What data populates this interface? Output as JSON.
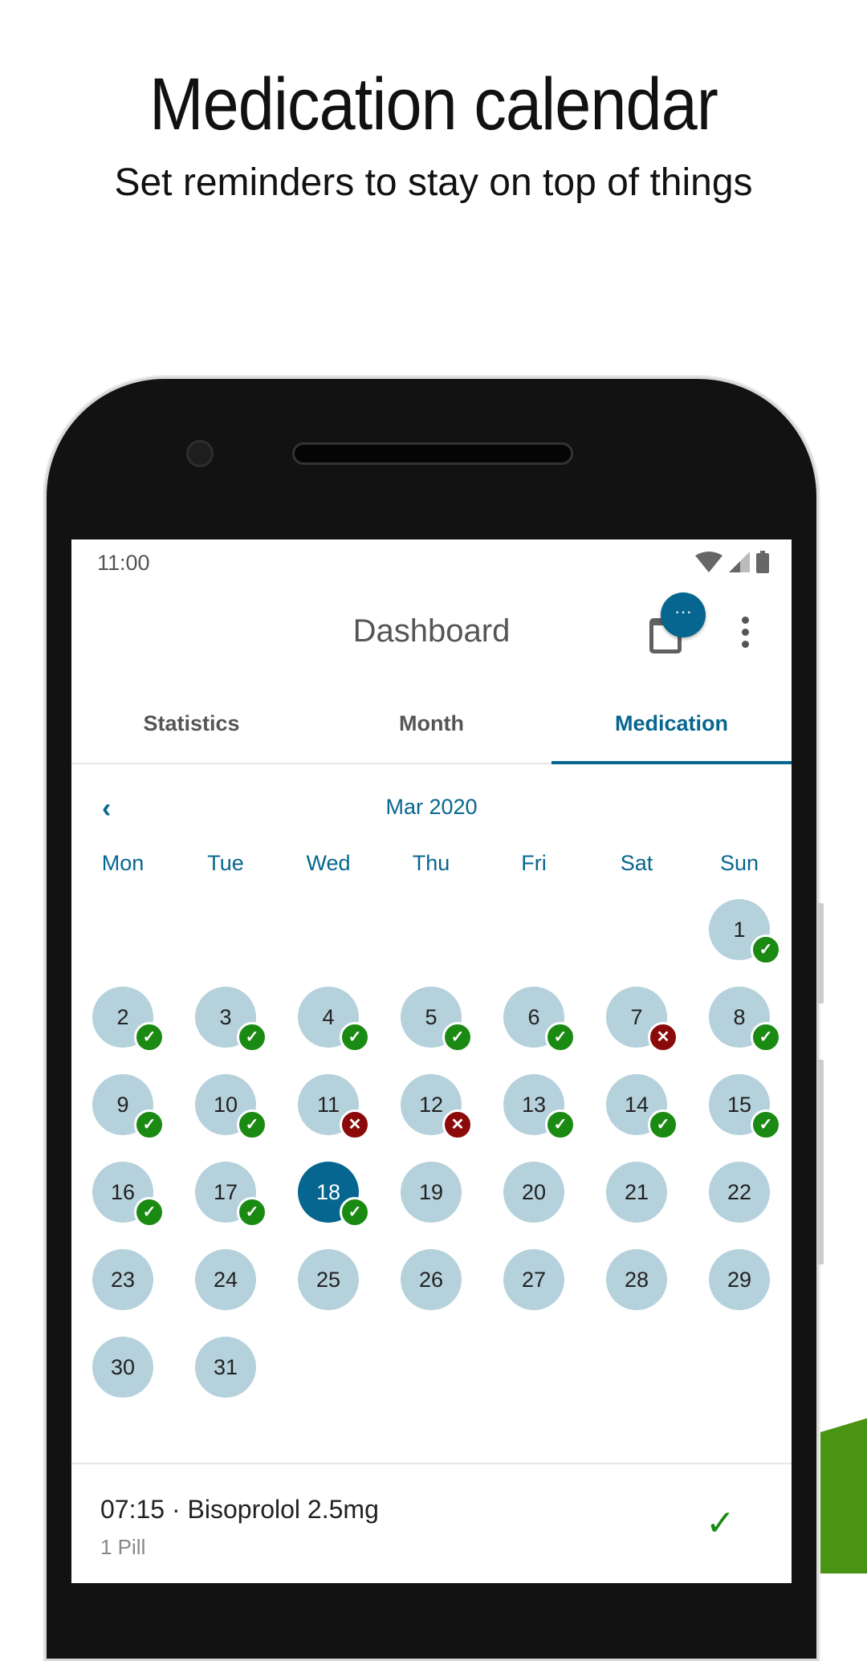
{
  "promo": {
    "title": "Medication calendar",
    "subtitle": "Set reminders to stay on top of things"
  },
  "status_bar": {
    "time": "11:00",
    "icons": [
      "wifi-icon",
      "signal-icon",
      "battery-icon"
    ]
  },
  "app_bar": {
    "title": "Dashboard",
    "calendar_icon": "calendar-icon",
    "fab_label": "···",
    "menu_icon": "more-vert-icon"
  },
  "tabs": [
    {
      "label": "Statistics",
      "active": false
    },
    {
      "label": "Month",
      "active": false
    },
    {
      "label": "Medication",
      "active": true
    }
  ],
  "calendar": {
    "month_label": "Mar 2020",
    "prev_icon": "‹",
    "weekdays": [
      "Mon",
      "Tue",
      "Wed",
      "Thu",
      "Fri",
      "Sat",
      "Sun"
    ],
    "first_weekday_index": 6,
    "days_in_month": 31,
    "selected_day": 18,
    "statuses": {
      "1": "taken",
      "2": "taken",
      "3": "taken",
      "4": "taken",
      "5": "taken",
      "6": "taken",
      "7": "missed",
      "8": "taken",
      "9": "taken",
      "10": "taken",
      "11": "missed",
      "12": "missed",
      "13": "taken",
      "14": "taken",
      "15": "taken",
      "16": "taken",
      "17": "taken",
      "18": "taken"
    }
  },
  "medications": [
    {
      "title": "07:15 · Bisoprolol 2.5mg",
      "subtitle": "1 Pill",
      "status": "taken"
    }
  ],
  "colors": {
    "accent": "#06668f",
    "day_bg": "#b5d1dc",
    "taken": "#1a8a12",
    "missed": "#8b0a0a",
    "promo_green": "#4a9414"
  }
}
